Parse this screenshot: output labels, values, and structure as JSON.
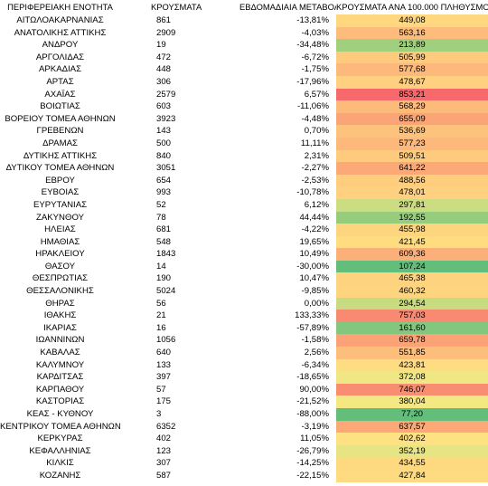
{
  "headers": {
    "region": "ΠΕΡΙΦΕΡΕΙΑΚΗ ΕΝΟΤΗΤΑ",
    "cases": "ΚΡΟΥΣΜΑΤΑ",
    "weekly_change": "ΕΒΔΟΜΑΔΙΑΙΑ ΜΕΤΑΒΟΛΗ",
    "per_100k": "ΚΡΟΥΣΜΑΤΑ ΑΝΑ 100.000 ΠΛΗΘΥΣΜΟ"
  },
  "rows": [
    {
      "region": "ΑΙΤΩΛΟΑΚΑΡΝΑΝΙΑΣ",
      "cases": "861",
      "change": "-13,81%",
      "per100k": "449,08",
      "color": "#fed77f"
    },
    {
      "region": "ΑΝΑΤΟΛΙΚΗΣ ΑΤΤΙΚΗΣ",
      "cases": "2909",
      "change": "-4,03%",
      "per100k": "563,16",
      "color": "#fdbc7b"
    },
    {
      "region": "ΑΝΔΡΟΥ",
      "cases": "19",
      "change": "-34,48%",
      "per100k": "213,89",
      "color": "#a0d07e"
    },
    {
      "region": "ΑΡΓΟΛΙΔΑΣ",
      "cases": "472",
      "change": "-6,72%",
      "per100k": "505,99",
      "color": "#fecb7e"
    },
    {
      "region": "ΑΡΚΑΔΙΑΣ",
      "cases": "448",
      "change": "-1,75%",
      "per100k": "577,68",
      "color": "#fdb87b"
    },
    {
      "region": "ΑΡΤΑΣ",
      "cases": "306",
      "change": "-17,96%",
      "per100k": "478,67",
      "color": "#ffd07f"
    },
    {
      "region": "ΑΧΑΪΑΣ",
      "cases": "2579",
      "change": "6,57%",
      "per100k": "853,21",
      "color": "#f8696b"
    },
    {
      "region": "ΒΟΙΩΤΙΑΣ",
      "cases": "603",
      "change": "-11,06%",
      "per100k": "568,29",
      "color": "#fdbb7b"
    },
    {
      "region": "ΒΟΡΕΙΟΥ ΤΟΜΕΑ ΑΘΗΝΩΝ",
      "cases": "3923",
      "change": "-4,48%",
      "per100k": "655,09",
      "color": "#fba477"
    },
    {
      "region": "ΓΡΕΒΕΝΩΝ",
      "cases": "143",
      "change": "0,70%",
      "per100k": "536,69",
      "color": "#fdc27c"
    },
    {
      "region": "ΔΡΑΜΑΣ",
      "cases": "500",
      "change": "11,11%",
      "per100k": "577,23",
      "color": "#fdb87b"
    },
    {
      "region": "ΔΥΤΙΚΗΣ ΑΤΤΙΚΗΣ",
      "cases": "840",
      "change": "2,31%",
      "per100k": "509,51",
      "color": "#feca7e"
    },
    {
      "region": "ΔΥΤΙΚΟΥ ΤΟΜΕΑ ΑΘΗΝΩΝ",
      "cases": "3051",
      "change": "-2,27%",
      "per100k": "641,22",
      "color": "#fca877"
    },
    {
      "region": "ΕΒΡΟΥ",
      "cases": "654",
      "change": "-2,53%",
      "per100k": "488,56",
      "color": "#fece7e"
    },
    {
      "region": "ΕΥΒΟΙΑΣ",
      "cases": "993",
      "change": "-10,78%",
      "per100k": "478,01",
      "color": "#ffd07f"
    },
    {
      "region": "ΕΥΡΥΤΑΝΙΑΣ",
      "cases": "52",
      "change": "6,12%",
      "per100k": "297,81",
      "color": "#cbdc81"
    },
    {
      "region": "ΖΑΚΥΝΘΟΥ",
      "cases": "78",
      "change": "44,44%",
      "per100k": "192,55",
      "color": "#95cd7d"
    },
    {
      "region": "ΗΛΕΙΑΣ",
      "cases": "681",
      "change": "-4,22%",
      "per100k": "455,98",
      "color": "#fed57f"
    },
    {
      "region": "ΗΜΑΘΙΑΣ",
      "cases": "548",
      "change": "19,65%",
      "per100k": "421,45",
      "color": "#fedd81"
    },
    {
      "region": "ΗΡΑΚΛΕΙΟΥ",
      "cases": "1843",
      "change": "10,49%",
      "per100k": "609,36",
      "color": "#fcb079"
    },
    {
      "region": "ΘΑΣΟΥ",
      "cases": "14",
      "change": "-30,00%",
      "per100k": "107,24",
      "color": "#63be7b"
    },
    {
      "region": "ΘΕΣΠΡΩΤΙΑΣ",
      "cases": "190",
      "change": "10,47%",
      "per100k": "465,38",
      "color": "#fed37f"
    },
    {
      "region": "ΘΕΣΣΑΛΟΝΙΚΗΣ",
      "cases": "5024",
      "change": "-9,85%",
      "per100k": "460,32",
      "color": "#fed47f"
    },
    {
      "region": "ΘΗΡΑΣ",
      "cases": "56",
      "change": "0,00%",
      "per100k": "294,54",
      "color": "#c9db81"
    },
    {
      "region": "ΙΘΑΚΗΣ",
      "cases": "21",
      "change": "133,33%",
      "per100k": "757,03",
      "color": "#f98a72"
    },
    {
      "region": "ΙΚΑΡΙΑΣ",
      "cases": "16",
      "change": "-57,89%",
      "per100k": "161,60",
      "color": "#82c77d"
    },
    {
      "region": "ΙΩΑΝΝΙΝΩΝ",
      "cases": "1056",
      "change": "-1,58%",
      "per100k": "659,78",
      "color": "#fba376"
    },
    {
      "region": "ΚΑΒΑΛΑΣ",
      "cases": "640",
      "change": "2,56%",
      "per100k": "551,85",
      "color": "#fdbe7c"
    },
    {
      "region": "ΚΑΛΥΜΝΟΥ",
      "cases": "133",
      "change": "-6,34%",
      "per100k": "423,81",
      "color": "#fedc81"
    },
    {
      "region": "ΚΑΡΔΙΤΣΑΣ",
      "cases": "397",
      "change": "-18,65%",
      "per100k": "372,08",
      "color": "#f0e784"
    },
    {
      "region": "ΚΑΡΠΑΘΟΥ",
      "cases": "57",
      "change": "90,00%",
      "per100k": "746,07",
      "color": "#f98d72"
    },
    {
      "region": "ΚΑΣΤΟΡΙΑΣ",
      "cases": "175",
      "change": "-21,52%",
      "per100k": "380,04",
      "color": "#f4e883"
    },
    {
      "region": "ΚΕΑΣ - ΚΥΘΝΟΥ",
      "cases": "3",
      "change": "-88,00%",
      "per100k": "77,20",
      "color": "#63be7b"
    },
    {
      "region": "ΚΕΝΤΡΙΚΟΥ ΤΟΜΕΑ ΑΘΗΝΩΝ",
      "cases": "6352",
      "change": "-3,19%",
      "per100k": "637,57",
      "color": "#fca877"
    },
    {
      "region": "ΚΕΡΚΥΡΑΣ",
      "cases": "402",
      "change": "11,05%",
      "per100k": "402,62",
      "color": "#fee182"
    },
    {
      "region": "ΚΕΦΑΛΛΗΝΙΑΣ",
      "cases": "123",
      "change": "-26,79%",
      "per100k": "352,19",
      "color": "#e6e483"
    },
    {
      "region": "ΚΙΛΚΙΣ",
      "cases": "307",
      "change": "-14,25%",
      "per100k": "434,55",
      "color": "#fed980"
    },
    {
      "region": "ΚΟΖΑΝΗΣ",
      "cases": "587",
      "change": "-22,15%",
      "per100k": "427,84",
      "color": "#fedb80"
    }
  ]
}
